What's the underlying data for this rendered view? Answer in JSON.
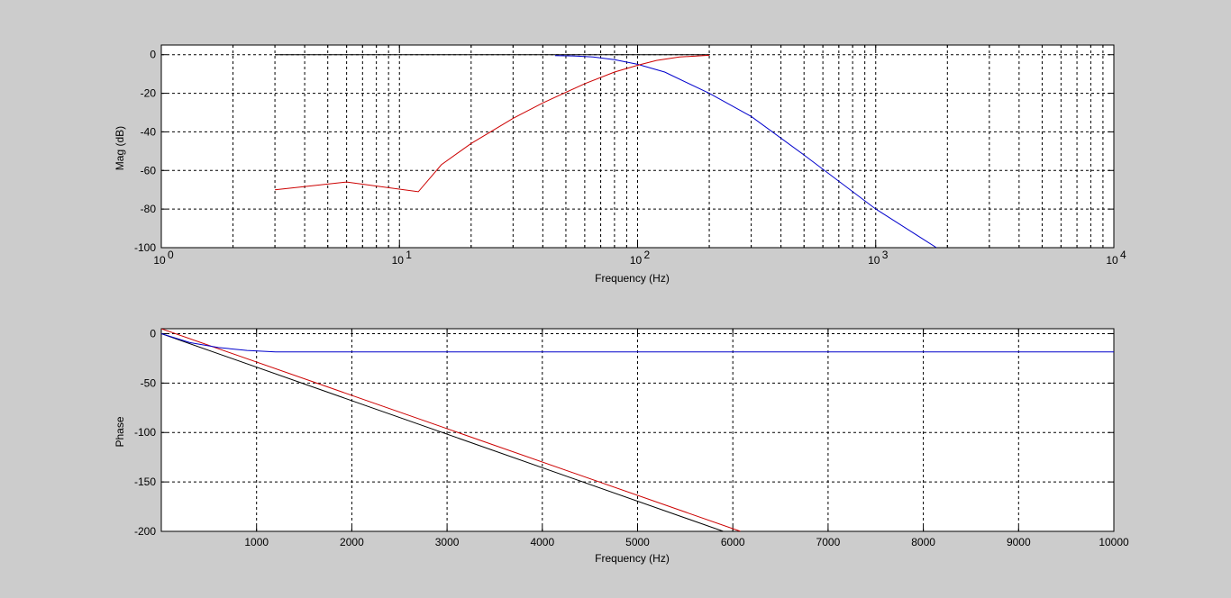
{
  "chart_data": [
    {
      "type": "line",
      "x_scale": "log",
      "xlabel": "Frequency (Hz)",
      "ylabel": "Mag (dB)",
      "xlim": [
        1,
        10000
      ],
      "ylim": [
        -100,
        5
      ],
      "grid": true,
      "x_ticks": [
        {
          "value": 1,
          "base": "10",
          "exp": "0"
        },
        {
          "value": 10,
          "base": "10",
          "exp": "1"
        },
        {
          "value": 100,
          "base": "10",
          "exp": "2"
        },
        {
          "value": 1000,
          "base": "10",
          "exp": "3"
        },
        {
          "value": 10000,
          "base": "10",
          "exp": "4"
        }
      ],
      "y_ticks": [
        {
          "value": 0,
          "label": "0"
        },
        {
          "value": -20,
          "label": "-20"
        },
        {
          "value": -40,
          "label": "-40"
        },
        {
          "value": -60,
          "label": "-60"
        },
        {
          "value": -80,
          "label": "-80"
        },
        {
          "value": -100,
          "label": "-100"
        }
      ],
      "series": [
        {
          "color": "#000000",
          "x": [
            3,
            200
          ],
          "y": [
            0,
            0
          ]
        },
        {
          "color": "#0000cc",
          "x": [
            45,
            55,
            65,
            80,
            100,
            130,
            200,
            300,
            500,
            1000,
            1800
          ],
          "y": [
            -0.5,
            -0.7,
            -1.2,
            -2.6,
            -5,
            -9,
            -20,
            -32,
            -52,
            -80,
            -100
          ]
        },
        {
          "color": "#cc0000",
          "x": [
            3,
            6,
            12,
            15,
            20,
            30,
            40,
            60,
            80,
            100,
            120,
            150,
            200
          ],
          "y": [
            -70,
            -66,
            -71,
            -57,
            -46,
            -33,
            -25,
            -15,
            -9,
            -5.5,
            -3,
            -1.2,
            -0.3
          ]
        }
      ]
    },
    {
      "type": "line",
      "xlabel": "Frequency (Hz)",
      "ylabel": "Phase",
      "xlim": [
        0,
        10000
      ],
      "ylim": [
        -200,
        5
      ],
      "grid": true,
      "x_ticks": [
        {
          "value": 1000,
          "label": "1000"
        },
        {
          "value": 2000,
          "label": "2000"
        },
        {
          "value": 3000,
          "label": "3000"
        },
        {
          "value": 4000,
          "label": "4000"
        },
        {
          "value": 5000,
          "label": "5000"
        },
        {
          "value": 6000,
          "label": "6000"
        },
        {
          "value": 7000,
          "label": "7000"
        },
        {
          "value": 8000,
          "label": "8000"
        },
        {
          "value": 9000,
          "label": "9000"
        },
        {
          "value": 10000,
          "label": "10000"
        }
      ],
      "y_ticks": [
        {
          "value": 0,
          "label": "0"
        },
        {
          "value": -50,
          "label": "-50"
        },
        {
          "value": -100,
          "label": "-100"
        },
        {
          "value": -150,
          "label": "-150"
        },
        {
          "value": -200,
          "label": "-200"
        }
      ],
      "series": [
        {
          "color": "#000000",
          "x": [
            0,
            5900
          ],
          "y": [
            0,
            -200
          ]
        },
        {
          "color": "#cc0000",
          "x": [
            0,
            6080
          ],
          "y": [
            5,
            -200
          ]
        },
        {
          "color": "#0000cc",
          "x": [
            0,
            300,
            600,
            900,
            1200,
            10000
          ],
          "y": [
            0,
            -9,
            -14,
            -17,
            -18.5,
            -18.5
          ]
        }
      ]
    }
  ]
}
